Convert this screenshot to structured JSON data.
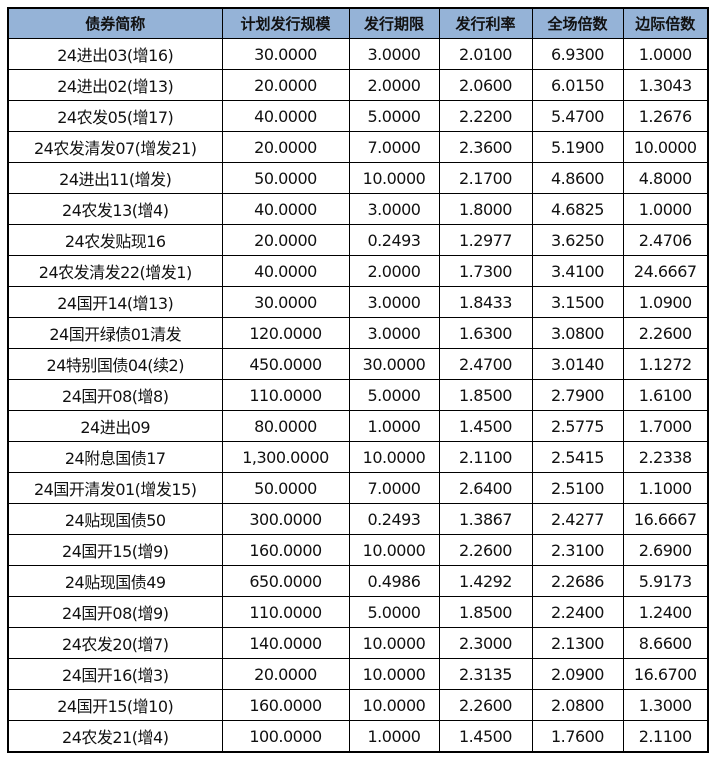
{
  "table": {
    "headers": [
      "债券简称",
      "计划发行规模",
      "发行期限",
      "发行利率",
      "全场倍数",
      "边际倍数"
    ],
    "header_bg": "#95b3d7",
    "rows": [
      [
        "24进出03(增16)",
        "30.0000",
        "3.0000",
        "2.0100",
        "6.9300",
        "1.0000"
      ],
      [
        "24进出02(增13)",
        "20.0000",
        "2.0000",
        "2.0600",
        "6.0150",
        "1.3043"
      ],
      [
        "24农发05(增17)",
        "40.0000",
        "5.0000",
        "2.2200",
        "5.4700",
        "1.2676"
      ],
      [
        "24农发清发07(增发21)",
        "20.0000",
        "7.0000",
        "2.3600",
        "5.1900",
        "10.0000"
      ],
      [
        "24进出11(增发)",
        "50.0000",
        "10.0000",
        "2.1700",
        "4.8600",
        "4.8000"
      ],
      [
        "24农发13(增4)",
        "40.0000",
        "3.0000",
        "1.8000",
        "4.6825",
        "1.0000"
      ],
      [
        "24农发贴现16",
        "20.0000",
        "0.2493",
        "1.2977",
        "3.6250",
        "2.4706"
      ],
      [
        "24农发清发22(增发1)",
        "40.0000",
        "2.0000",
        "1.7300",
        "3.4100",
        "24.6667"
      ],
      [
        "24国开14(增13)",
        "30.0000",
        "3.0000",
        "1.8433",
        "3.1500",
        "1.0900"
      ],
      [
        "24国开绿债01清发",
        "120.0000",
        "3.0000",
        "1.6300",
        "3.0800",
        "2.2600"
      ],
      [
        "24特别国债04(续2)",
        "450.0000",
        "30.0000",
        "2.4700",
        "3.0140",
        "1.1272"
      ],
      [
        "24国开08(增8)",
        "110.0000",
        "5.0000",
        "1.8500",
        "2.7900",
        "1.6100"
      ],
      [
        "24进出09",
        "80.0000",
        "1.0000",
        "1.4500",
        "2.5775",
        "1.7000"
      ],
      [
        "24附息国债17",
        "1,300.0000",
        "10.0000",
        "2.1100",
        "2.5415",
        "2.2338"
      ],
      [
        "24国开清发01(增发15)",
        "50.0000",
        "7.0000",
        "2.6400",
        "2.5100",
        "1.1000"
      ],
      [
        "24贴现国债50",
        "300.0000",
        "0.2493",
        "1.3867",
        "2.4277",
        "16.6667"
      ],
      [
        "24国开15(增9)",
        "160.0000",
        "10.0000",
        "2.2600",
        "2.3100",
        "2.6900"
      ],
      [
        "24贴现国债49",
        "650.0000",
        "0.4986",
        "1.4292",
        "2.2686",
        "5.9173"
      ],
      [
        "24国开08(增9)",
        "110.0000",
        "5.0000",
        "1.8500",
        "2.2400",
        "1.2400"
      ],
      [
        "24农发20(增7)",
        "140.0000",
        "10.0000",
        "2.3000",
        "2.1300",
        "8.6600"
      ],
      [
        "24国开16(增3)",
        "20.0000",
        "10.0000",
        "2.3135",
        "2.0900",
        "16.6700"
      ],
      [
        "24国开15(增10)",
        "160.0000",
        "10.0000",
        "2.2600",
        "2.0800",
        "1.3000"
      ],
      [
        "24农发21(增4)",
        "100.0000",
        "1.0000",
        "1.4500",
        "1.7600",
        "2.1100"
      ]
    ]
  }
}
